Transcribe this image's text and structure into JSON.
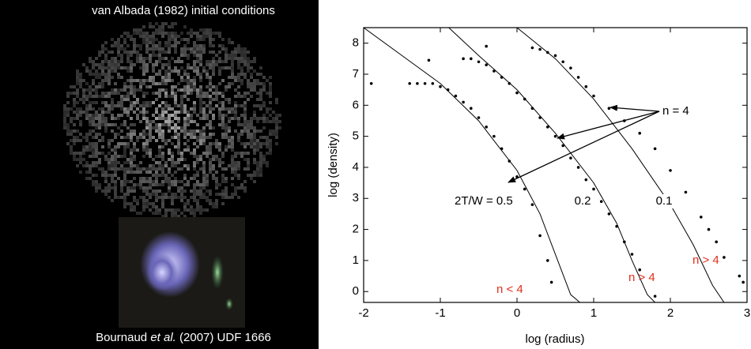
{
  "image_panel": {
    "top_caption": "van Albada (1982) initial conditions",
    "bottom_caption": {
      "before": "Bournaud ",
      "italic": "et al.",
      "after": " (2007)  UDF 1666"
    }
  },
  "chart_data": {
    "type": "line",
    "x_label": "log (radius)",
    "y_label": "log (density)",
    "xlim": [
      -2,
      3
    ],
    "ylim": [
      -0.35,
      8.5
    ],
    "xticks": [
      -2,
      -1,
      0,
      1,
      2,
      3
    ],
    "yticks": [
      0,
      1,
      2,
      3,
      4,
      5,
      6,
      7,
      8
    ],
    "grid": false,
    "series": [
      {
        "name": "2T/W = 0.5",
        "type": "line",
        "color": "#000000",
        "x": [
          -2,
          -1.5,
          -1,
          -0.5,
          0,
          0.3,
          0.5,
          0.7,
          0.82
        ],
        "values": [
          8.5,
          7.6,
          6.7,
          5.5,
          3.9,
          2.5,
          1.2,
          -0.1,
          -0.35
        ]
      },
      {
        "name": "0.2",
        "type": "line",
        "color": "#000000",
        "x": [
          -0.89,
          -0.5,
          0,
          0.5,
          1,
          1.3,
          1.5,
          1.7,
          1.8
        ],
        "values": [
          8.5,
          7.6,
          6.5,
          5.1,
          3.5,
          2.2,
          1.0,
          -0.1,
          -0.35
        ]
      },
      {
        "name": "0.1",
        "type": "line",
        "color": "#000000",
        "x": [
          0,
          0.5,
          1,
          1.5,
          2,
          2.3,
          2.55,
          2.7
        ],
        "values": [
          8.5,
          7.5,
          6.2,
          4.6,
          2.8,
          1.5,
          0.2,
          -0.35
        ]
      },
      {
        "type": "scatter",
        "color": "#000000",
        "x": [
          -1.9,
          -1.4,
          -1.3,
          -1.2,
          -1.1,
          -1,
          -0.9,
          -0.8,
          -0.7,
          -0.6,
          -0.5,
          -0.4,
          -0.3,
          -0.2,
          -0.1,
          0,
          0.1,
          0.2,
          0.3,
          0.4,
          0.45
        ],
        "values": [
          6.7,
          6.7,
          6.7,
          6.7,
          6.7,
          6.6,
          6.5,
          6.3,
          6.1,
          5.9,
          5.6,
          5.3,
          5.0,
          4.6,
          4.2,
          3.7,
          3.3,
          2.8,
          1.8,
          1.0,
          0.3
        ]
      },
      {
        "type": "scatter",
        "color": "#000000",
        "x": [
          -1.15,
          -0.7,
          -0.6,
          -0.5,
          -0.4,
          -0.4,
          -0.3,
          -0.2,
          -0.1,
          0,
          0.1,
          0.2,
          0.3,
          0.4,
          0.5,
          0.6,
          0.7,
          0.8,
          0.9,
          1.0,
          1.1,
          1.2,
          1.3,
          1.4,
          1.5,
          1.6,
          1.8
        ],
        "values": [
          7.45,
          7.5,
          7.5,
          7.4,
          7.9,
          7.3,
          7.1,
          6.9,
          6.7,
          6.4,
          6.2,
          5.9,
          5.6,
          5.3,
          5.0,
          4.7,
          4.3,
          4.0,
          3.6,
          3.3,
          2.9,
          2.5,
          2.1,
          1.6,
          1.2,
          0.7,
          -0.15
        ]
      },
      {
        "type": "scatter",
        "color": "#000000",
        "x": [
          0.2,
          0.3,
          0.4,
          0.5,
          0.6,
          0.7,
          0.8,
          0.9,
          1.0,
          1.2,
          1.4,
          1.6,
          1.8,
          2.0,
          2.2,
          2.4,
          2.5,
          2.6,
          2.7,
          2.9,
          2.95
        ],
        "values": [
          7.85,
          7.8,
          7.7,
          7.6,
          7.4,
          7.2,
          6.9,
          6.6,
          6.3,
          5.9,
          5.5,
          5.1,
          4.6,
          3.9,
          3.2,
          2.4,
          2.0,
          1.6,
          1.1,
          0.5,
          0.3
        ]
      }
    ],
    "annotations": {
      "n_equal": "n = 4",
      "n_less": "n < 4",
      "n_greater_1": "n > 4",
      "n_greater_2": "n > 4",
      "color_red": "#e0301e"
    }
  }
}
